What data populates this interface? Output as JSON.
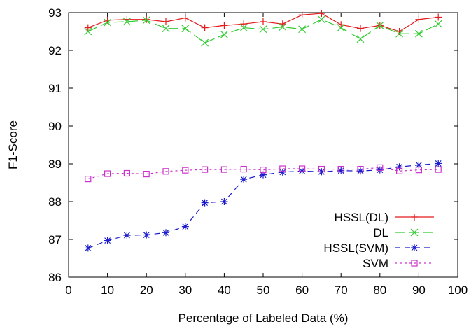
{
  "chart_data": {
    "type": "line",
    "xlabel": "Percentage of Labeled Data (%)",
    "ylabel": "F1-Score",
    "xlim": [
      0,
      100
    ],
    "ylim": [
      86,
      93
    ],
    "xticks": [
      0,
      10,
      20,
      30,
      40,
      50,
      60,
      70,
      80,
      90,
      100
    ],
    "yticks": [
      86,
      87,
      88,
      89,
      90,
      91,
      92,
      93
    ],
    "grid": false,
    "legend_position": "bottom-right",
    "x": [
      5,
      10,
      15,
      20,
      25,
      30,
      35,
      40,
      45,
      50,
      55,
      60,
      65,
      70,
      75,
      80,
      85,
      90,
      95
    ],
    "series": [
      {
        "name": "HSSL(DL)",
        "color": "#e41a1c",
        "marker": "plus",
        "dash": "solid",
        "values": [
          92.6,
          92.8,
          92.82,
          92.82,
          92.76,
          92.86,
          92.6,
          92.66,
          92.7,
          92.76,
          92.7,
          92.94,
          92.98,
          92.68,
          92.58,
          92.66,
          92.5,
          92.82,
          92.88
        ]
      },
      {
        "name": "DL",
        "color": "#33cc33",
        "marker": "x",
        "dash": "longdash",
        "values": [
          92.5,
          92.74,
          92.76,
          92.8,
          92.58,
          92.58,
          92.2,
          92.42,
          92.6,
          92.56,
          92.62,
          92.56,
          92.82,
          92.6,
          92.3,
          92.66,
          92.44,
          92.44,
          92.7
        ]
      },
      {
        "name": "HSSL(SVM)",
        "color": "#1a1acc",
        "marker": "star",
        "dash": "dash",
        "values": [
          86.77,
          86.97,
          87.11,
          87.12,
          87.18,
          87.34,
          87.97,
          88.0,
          88.59,
          88.71,
          88.78,
          88.81,
          88.79,
          88.82,
          88.81,
          88.84,
          88.92,
          88.97,
          89.01
        ]
      },
      {
        "name": "SVM",
        "color": "#cc33cc",
        "marker": "square",
        "dash": "dot",
        "values": [
          88.6,
          88.74,
          88.75,
          88.73,
          88.8,
          88.83,
          88.85,
          88.85,
          88.86,
          88.84,
          88.87,
          88.87,
          88.86,
          88.86,
          88.86,
          88.9,
          88.81,
          88.84,
          88.85
        ]
      }
    ]
  }
}
